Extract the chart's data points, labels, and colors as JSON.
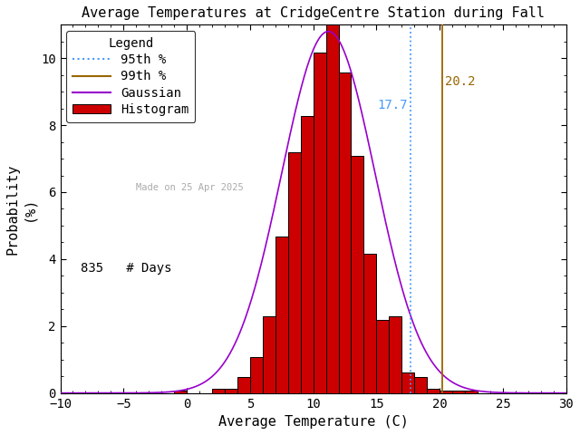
{
  "title": "Average Temperatures at CridgeCentre Station during Fall",
  "xlabel": "Average Temperature (C)",
  "ylabel": "Probability\n(%)",
  "xlim": [
    -10,
    30
  ],
  "ylim": [
    0,
    11
  ],
  "bin_left_edges": [
    -8,
    -7,
    -6,
    -5,
    -4,
    -3,
    -2,
    -1,
    0,
    1,
    2,
    3,
    4,
    5,
    6,
    7,
    8,
    9,
    10,
    11,
    12,
    13,
    14,
    15,
    16,
    17,
    18,
    19,
    20,
    21,
    22,
    23,
    24,
    25
  ],
  "bin_heights": [
    0.0,
    0.0,
    0.0,
    0.0,
    0.0,
    0.0,
    0.0,
    0.06,
    0.0,
    0.0,
    0.12,
    0.12,
    0.48,
    1.08,
    2.29,
    4.67,
    7.19,
    8.26,
    10.18,
    11.02,
    9.58,
    7.07,
    4.16,
    2.17,
    2.29,
    0.6,
    0.48,
    0.12,
    0.06,
    0.06,
    0.06,
    0.0,
    0.0,
    0.0
  ],
  "gauss_mean": 11.2,
  "gauss_std": 3.7,
  "gauss_amplitude": 10.8,
  "p95": 17.7,
  "p99": 20.2,
  "n_days": 835,
  "watermark": "Made on 25 Apr 2025",
  "bar_color": "#cc0000",
  "bar_edge_color": "#000000",
  "gauss_color": "#9900cc",
  "p95_color": "#4499ff",
  "p95_linestyle": "dotted",
  "p99_color": "#996600",
  "p99_linestyle": "solid",
  "watermark_color": "#aaaaaa",
  "background_color": "#ffffff",
  "title_fontsize": 11,
  "label_fontsize": 11,
  "tick_fontsize": 10,
  "legend_fontsize": 10
}
